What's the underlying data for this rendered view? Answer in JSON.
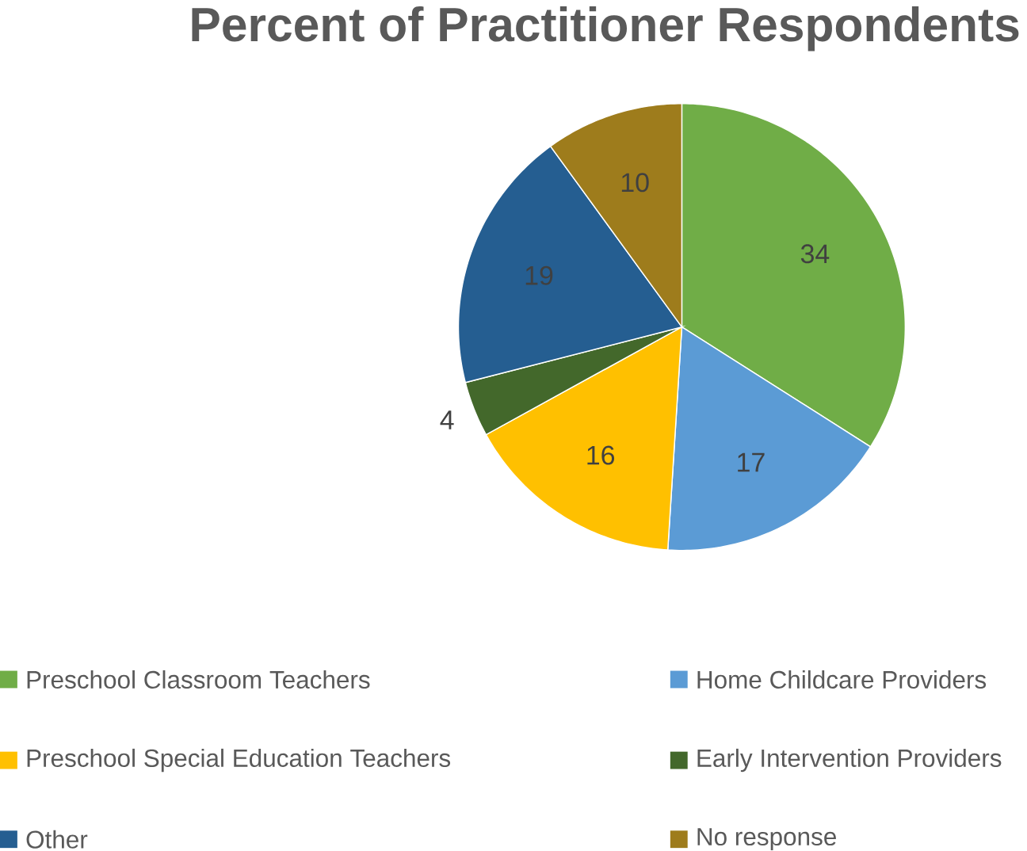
{
  "chart_data": {
    "type": "pie",
    "title": "Percent of Practitioner Respondents",
    "categories": [
      "Preschool Classroom Teachers",
      "Home Childcare Providers",
      "Preschool Special Education Teachers",
      "Early Intervention Providers",
      "Other",
      "No response"
    ],
    "values": [
      34,
      17,
      16,
      4,
      19,
      10
    ],
    "colors": [
      "#70ad47",
      "#5b9bd5",
      "#ffc000",
      "#43682b",
      "#255e91",
      "#9e7c1c"
    ],
    "data_labels": true,
    "legend": "bottom"
  }
}
